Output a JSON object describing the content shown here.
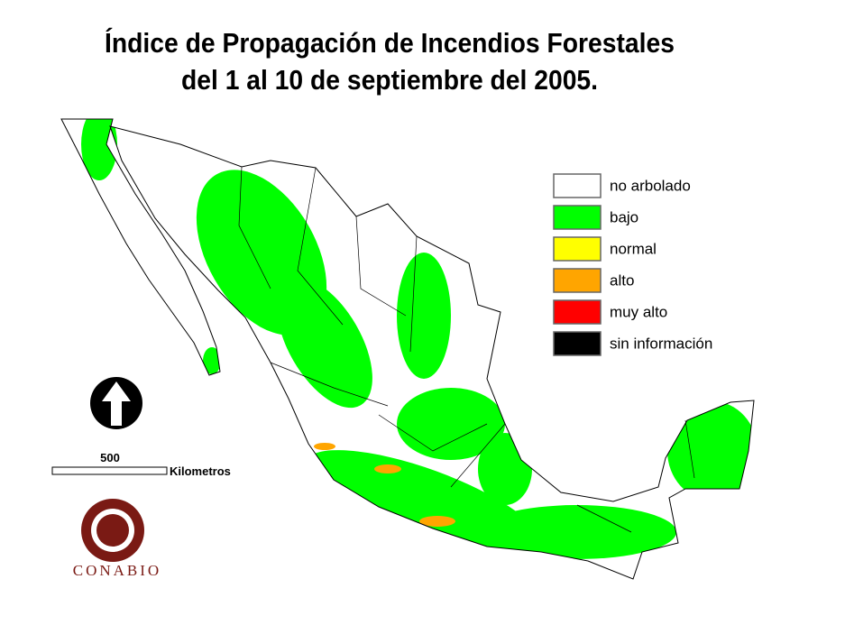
{
  "title": [
    "Índice de Propagación de Incendios Forestales",
    "del 1 al 10 de septiembre del 2005."
  ],
  "legend": [
    {
      "label": "no arbolado",
      "color": "#ffffff"
    },
    {
      "label": "bajo",
      "color": "#00ff00"
    },
    {
      "label": "normal",
      "color": "#ffff00"
    },
    {
      "label": "alto",
      "color": "#ffa500"
    },
    {
      "label": "muy alto",
      "color": "#ff0000"
    },
    {
      "label": "sin información",
      "color": "#000000"
    }
  ],
  "scale": {
    "distance": 500,
    "unit": "Kilometros"
  },
  "logo": "CONABIO"
}
